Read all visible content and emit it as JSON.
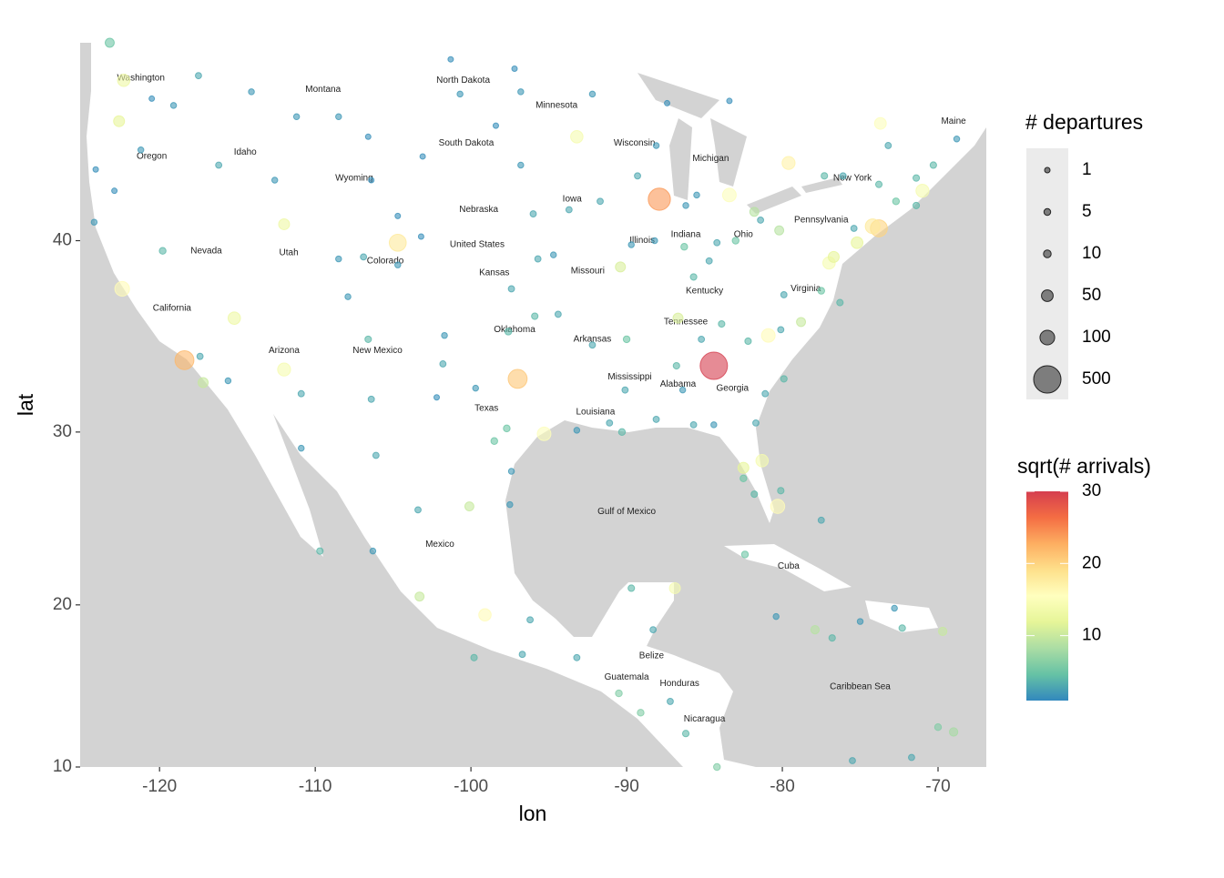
{
  "chart_data": {
    "type": "scatter",
    "projection": "mercator",
    "x_label": "lon",
    "y_label": "lat",
    "xlim": [
      -125.1,
      -66.9
    ],
    "ylim": [
      10,
      49
    ],
    "xticks": [
      -120,
      -110,
      -100,
      -90,
      -80,
      -70
    ],
    "yticks": [
      10,
      20,
      30,
      40
    ],
    "size_title": "# departures",
    "size_breaks": [
      1,
      5,
      10,
      50,
      100,
      500
    ],
    "color_title": "sqrt(# arrivals)",
    "color_lim": [
      1,
      30
    ],
    "color_ticks": [
      10,
      20,
      30
    ],
    "colorscale": [
      "#3288bd",
      "#66c2a5",
      "#abdda4",
      "#e6f598",
      "#ffffbf",
      "#fee08b",
      "#fdae61",
      "#f46d43",
      "#d53e4f"
    ],
    "series": [
      {
        "x": [
          -84.4,
          -87.9,
          -97.0,
          -118.4,
          -104.7,
          -73.8,
          -74.2,
          -122.4,
          -95.3,
          -81.3,
          -80.3,
          -83.4,
          -71.0,
          -93.2,
          -122.3,
          -112.0,
          -115.2,
          -80.9,
          -77.0,
          -75.2,
          -79.6,
          -73.7,
          -122.6,
          -112.0,
          -117.2,
          -99.1,
          -86.9,
          -82.5,
          -90.4,
          -86.7,
          -76.7,
          -80.2,
          -81.8,
          -123.2,
          -78.8,
          -100.1,
          -103.3,
          -69.0,
          -69.7,
          -77.9,
          -117.5,
          -116.2,
          -114.1,
          -111.2,
          -108.5,
          -106.6,
          -104.7,
          -106.4,
          -112.6,
          -119.1,
          -120.5,
          -121.2,
          -122.9,
          -124.2,
          -124.1,
          -119.8,
          -117.4,
          -115.6,
          -110.9,
          -106.4,
          -106.6,
          -108.5,
          -107.9,
          -106.9,
          -104.7,
          -101.7,
          -102.2,
          -103.2,
          -97.4,
          -95.7,
          -94.7,
          -96.0,
          -96.8,
          -100.7,
          -96.8,
          -97.2,
          -103.1,
          -98.4,
          -101.3,
          -97.6,
          -95.9,
          -94.4,
          -92.2,
          -90.1,
          -91.1,
          -93.2,
          -90.3,
          -88.1,
          -86.8,
          -86.4,
          -85.7,
          -84.4,
          -81.7,
          -82.5,
          -81.8,
          -80.1,
          -97.7,
          -98.5,
          -97.5,
          -97.4,
          -101.8,
          -99.7,
          -91.7,
          -93.7,
          -89.7,
          -86.3,
          -85.7,
          -84.7,
          -83.0,
          -84.2,
          -85.5,
          -86.2,
          -88.2,
          -89.3,
          -88.1,
          -87.4,
          -92.2,
          -83.4,
          -81.4,
          -77.3,
          -76.1,
          -73.8,
          -72.7,
          -71.4,
          -70.3,
          -68.8,
          -73.2,
          -71.4,
          -75.4,
          -77.5,
          -76.3,
          -79.9,
          -79.9,
          -81.1,
          -82.2,
          -83.9,
          -85.2,
          -90.0,
          -80.1,
          -106.1,
          -110.9,
          -109.7,
          -106.3,
          -103.4,
          -99.8,
          -96.7,
          -96.2,
          -93.2,
          -89.7,
          -88.3,
          -90.5,
          -87.2,
          -89.1,
          -86.2,
          -84.2,
          -82.4,
          -77.5,
          -75.0,
          -72.3,
          -70.0,
          -71.7,
          -75.5,
          -80.4,
          -76.8,
          -72.8
        ],
        "values": [
          33.6,
          42.0,
          32.9,
          33.9,
          39.9,
          40.6,
          40.7,
          37.6,
          29.9,
          28.4,
          25.8,
          42.2,
          42.4,
          44.9,
          47.4,
          33.4,
          36.1,
          35.2,
          38.9,
          39.9,
          43.7,
          45.5,
          45.6,
          40.8,
          32.7,
          19.4,
          21.0,
          28.0,
          38.7,
          36.1,
          39.2,
          40.5,
          41.4,
          49.0,
          35.9,
          25.8,
          20.5,
          12.2,
          18.4,
          18.5,
          47.6,
          43.6,
          46.9,
          45.8,
          45.8,
          44.9,
          41.2,
          42.9,
          42.9,
          46.3,
          46.6,
          44.3,
          42.4,
          40.9,
          43.4,
          39.5,
          34.1,
          32.8,
          32.1,
          31.8,
          35.0,
          39.1,
          37.2,
          39.2,
          38.8,
          35.2,
          31.9,
          40.2,
          37.6,
          39.1,
          39.3,
          41.3,
          43.6,
          46.8,
          46.9,
          47.9,
          44.0,
          45.4,
          48.3,
          35.4,
          36.2,
          36.3,
          34.7,
          32.3,
          30.5,
          30.1,
          30.0,
          30.7,
          33.6,
          32.3,
          30.4,
          30.4,
          30.5,
          27.4,
          26.5,
          26.7,
          30.2,
          29.5,
          25.9,
          27.8,
          33.7,
          32.4,
          41.9,
          41.5,
          39.8,
          39.7,
          38.2,
          39.0,
          40.0,
          39.9,
          42.2,
          41.7,
          40.0,
          43.1,
          44.5,
          46.4,
          46.8,
          46.5,
          41.0,
          43.1,
          43.1,
          42.7,
          41.9,
          41.7,
          43.6,
          44.8,
          44.5,
          43.0,
          40.6,
          37.5,
          36.9,
          37.3,
          32.9,
          32.1,
          34.9,
          35.8,
          35.0,
          35.0,
          35.5,
          28.7,
          29.1,
          23.2,
          23.2,
          25.6,
          16.8,
          17.0,
          19.1,
          16.8,
          21.0,
          18.5,
          14.6,
          14.1,
          13.4,
          12.1,
          10.0,
          23.0,
          25.0,
          19.0,
          18.6,
          12.5,
          10.6,
          10.4,
          19.3,
          18.0,
          19.8
        ],
        "sizes": [
          500,
          300,
          200,
          200,
          150,
          150,
          100,
          100,
          80,
          60,
          90,
          80,
          70,
          60,
          60,
          70,
          60,
          80,
          60,
          50,
          70,
          50,
          40,
          40,
          30,
          60,
          40,
          40,
          30,
          30,
          40,
          20,
          20,
          20,
          20,
          20,
          20,
          15,
          15,
          15,
          3,
          3,
          2,
          2,
          2,
          1,
          1,
          1,
          2,
          2,
          1,
          2,
          1,
          2,
          1,
          5,
          3,
          2,
          3,
          3,
          4,
          2,
          2,
          3,
          2,
          2,
          1,
          1,
          3,
          3,
          2,
          3,
          2,
          2,
          2,
          1,
          1,
          1,
          1,
          5,
          4,
          3,
          3,
          3,
          3,
          2,
          5,
          3,
          4,
          2,
          3,
          2,
          3,
          5,
          4,
          4,
          5,
          5,
          2,
          2,
          3,
          2,
          3,
          3,
          2,
          5,
          4,
          3,
          5,
          3,
          2,
          2,
          2,
          3,
          2,
          1,
          2,
          1,
          3,
          4,
          3,
          4,
          5,
          4,
          4,
          2,
          3,
          4,
          3,
          5,
          4,
          3,
          4,
          3,
          4,
          4,
          3,
          5,
          3,
          3,
          2,
          4,
          2,
          3,
          4,
          3,
          3,
          3,
          4,
          3,
          5,
          3,
          5,
          4,
          5,
          5,
          3,
          2,
          4,
          5,
          3,
          3,
          2,
          4,
          2
        ],
        "colors": [
          30,
          24,
          21,
          22,
          18,
          20,
          18,
          16,
          15,
          14,
          16,
          15,
          14,
          14,
          13,
          14,
          13,
          16,
          14,
          12,
          17,
          15,
          12,
          13,
          10,
          16,
          14,
          12,
          11,
          11,
          12,
          9,
          9,
          5,
          10,
          10,
          10,
          8,
          10,
          9,
          3,
          3,
          2,
          2,
          2,
          1.5,
          1.5,
          1.5,
          2,
          2,
          1.5,
          2,
          1.5,
          2,
          1.5,
          4,
          3,
          2,
          3,
          3,
          4,
          2,
          2,
          3,
          2,
          2,
          1.5,
          1.5,
          3,
          3,
          2,
          3,
          2,
          2,
          2,
          1.5,
          1.5,
          1.5,
          1.5,
          4,
          4,
          3,
          3,
          3,
          3,
          2,
          4,
          3,
          4,
          2,
          3,
          2,
          3,
          5,
          4,
          4,
          5,
          5,
          2,
          2,
          3,
          2,
          3,
          3,
          2,
          5,
          4,
          3,
          5,
          3,
          2,
          2,
          2,
          3,
          2,
          1.5,
          2,
          1.5,
          3,
          4,
          3,
          4,
          5,
          4,
          4,
          2,
          3,
          4,
          3,
          5,
          4,
          3,
          4,
          3,
          4,
          4,
          3,
          5,
          3,
          3,
          2,
          4,
          2,
          3,
          4,
          3,
          3,
          3,
          4,
          3,
          6,
          3,
          6,
          4,
          6,
          5,
          3,
          2,
          4,
          6,
          3,
          3,
          2,
          4,
          2
        ]
      }
    ],
    "map_labels": [
      {
        "text": "Washington",
        "lon": -121.2,
        "lat": 47.5
      },
      {
        "text": "Montana",
        "lon": -109.5,
        "lat": 47.0
      },
      {
        "text": "Oregon",
        "lon": -120.5,
        "lat": 44.0
      },
      {
        "text": "Idaho",
        "lon": -114.5,
        "lat": 44.2
      },
      {
        "text": "Wyoming",
        "lon": -107.5,
        "lat": 43.0
      },
      {
        "text": "North Dakota",
        "lon": -100.5,
        "lat": 47.4
      },
      {
        "text": "South Dakota",
        "lon": -100.3,
        "lat": 44.6
      },
      {
        "text": "Minnesota",
        "lon": -94.5,
        "lat": 46.3
      },
      {
        "text": "Wisconsin",
        "lon": -89.5,
        "lat": 44.6
      },
      {
        "text": "Michigan",
        "lon": -84.6,
        "lat": 43.9
      },
      {
        "text": "Nebraska",
        "lon": -99.5,
        "lat": 41.5
      },
      {
        "text": "Iowa",
        "lon": -93.5,
        "lat": 42.0
      },
      {
        "text": "Nevada",
        "lon": -117.0,
        "lat": 39.5
      },
      {
        "text": "Utah",
        "lon": -111.7,
        "lat": 39.4
      },
      {
        "text": "Colorado",
        "lon": -105.5,
        "lat": 39.0
      },
      {
        "text": "Kansas",
        "lon": -98.5,
        "lat": 38.4
      },
      {
        "text": "Missouri",
        "lon": -92.5,
        "lat": 38.5
      },
      {
        "text": "Illinois",
        "lon": -89.0,
        "lat": 40.0
      },
      {
        "text": "Indiana",
        "lon": -86.2,
        "lat": 40.3
      },
      {
        "text": "Ohio",
        "lon": -82.5,
        "lat": 40.3
      },
      {
        "text": "Kentucky",
        "lon": -85.0,
        "lat": 37.5
      },
      {
        "text": "Pennsylvania",
        "lon": -77.5,
        "lat": 41.0
      },
      {
        "text": "New York",
        "lon": -75.5,
        "lat": 43.0
      },
      {
        "text": "California",
        "lon": -119.2,
        "lat": 36.6
      },
      {
        "text": "Arizona",
        "lon": -112.0,
        "lat": 34.4
      },
      {
        "text": "New Mexico",
        "lon": -106.0,
        "lat": 34.4
      },
      {
        "text": "Oklahoma",
        "lon": -97.2,
        "lat": 35.5
      },
      {
        "text": "Texas",
        "lon": -99.0,
        "lat": 31.3
      },
      {
        "text": "Arkansas",
        "lon": -92.2,
        "lat": 35.0
      },
      {
        "text": "Tennessee",
        "lon": -86.2,
        "lat": 35.9
      },
      {
        "text": "Mississippi",
        "lon": -89.8,
        "lat": 33.0
      },
      {
        "text": "Alabama",
        "lon": -86.7,
        "lat": 32.6
      },
      {
        "text": "Georgia",
        "lon": -83.2,
        "lat": 32.4
      },
      {
        "text": "Louisiana",
        "lon": -92.0,
        "lat": 31.1
      },
      {
        "text": "Virginia",
        "lon": -78.5,
        "lat": 37.6
      },
      {
        "text": "Maine",
        "lon": -69.0,
        "lat": 45.6
      },
      {
        "text": "United States",
        "lon": -99.6,
        "lat": 39.8
      },
      {
        "text": "Mexico",
        "lon": -102.0,
        "lat": 23.6
      },
      {
        "text": "Cuba",
        "lon": -79.6,
        "lat": 22.3
      },
      {
        "text": "Guatemala",
        "lon": -90.0,
        "lat": 15.6
      },
      {
        "text": "Honduras",
        "lon": -86.6,
        "lat": 15.2
      },
      {
        "text": "Nicaragua",
        "lon": -85.0,
        "lat": 13.0
      },
      {
        "text": "Belize",
        "lon": -88.4,
        "lat": 16.9
      },
      {
        "text": "Gulf of Mexico",
        "lon": -90.0,
        "lat": 25.5
      },
      {
        "text": "Caribbean Sea",
        "lon": -75.0,
        "lat": 15.0
      }
    ]
  }
}
